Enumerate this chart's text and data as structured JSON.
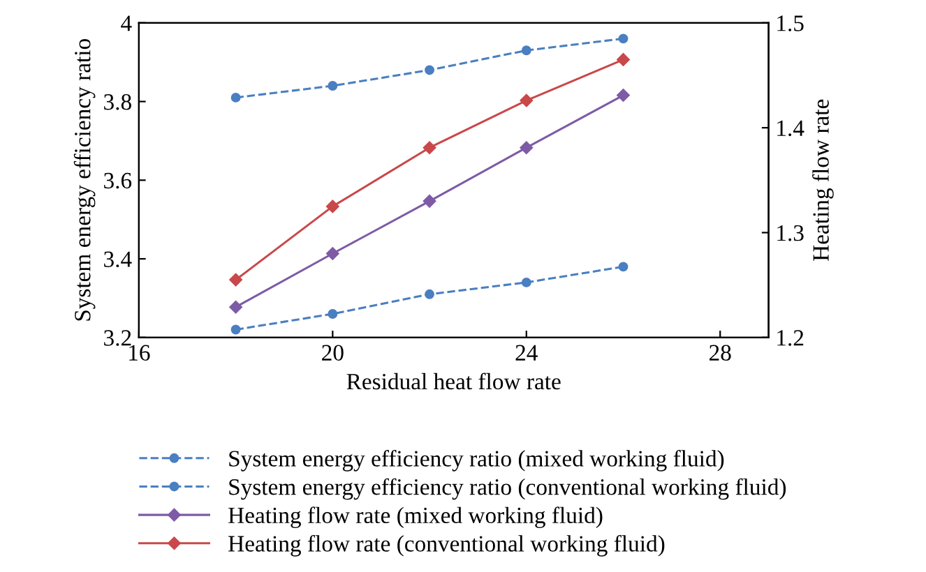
{
  "chart_data": {
    "type": "line",
    "xlabel": "Residual heat flow rate",
    "ylabel": "System energy efficiency ratio",
    "y2label": "Heating flow rate",
    "x": [
      18,
      20,
      22,
      24,
      26
    ],
    "xlim": [
      16,
      29
    ],
    "xticks": [
      16,
      20,
      24,
      28
    ],
    "ylim": [
      3.2,
      4
    ],
    "yticks": [
      3.2,
      3.4,
      3.6,
      3.8,
      4
    ],
    "y2lim": [
      1.2,
      1.5
    ],
    "y2ticks": [
      1.2,
      1.3,
      1.4,
      1.5
    ],
    "grid": false,
    "legend": "bottom",
    "series": [
      {
        "name": "System energy efficiency ratio (mixed working fluid)",
        "color": "#4a7fc1",
        "values": [
          3.81,
          3.84,
          3.88,
          3.93,
          3.96
        ],
        "marker": "circle",
        "line_style": "dashed"
      },
      {
        "name": "System energy efficiency ratio (conventional working fluid)",
        "color": "#4a7fc1",
        "values": [
          3.22,
          3.26,
          3.31,
          3.34,
          3.38
        ],
        "marker": "circle",
        "line_style": "dashed"
      },
      {
        "name": "Heating flow rate (mixed working fluid)",
        "color": "#7e5ba6",
        "values": [
          1.229,
          1.28,
          1.33,
          1.381,
          1.431
        ],
        "marker": "diamond",
        "line_style": "solid",
        "axis": "y2"
      },
      {
        "name": "Heating flow rate (conventional working fluid)",
        "color": "#c9484a",
        "values": [
          1.255,
          1.325,
          1.381,
          1.426,
          1.465
        ],
        "marker": "diamond",
        "line_style": "solid",
        "axis": "y2"
      }
    ]
  }
}
